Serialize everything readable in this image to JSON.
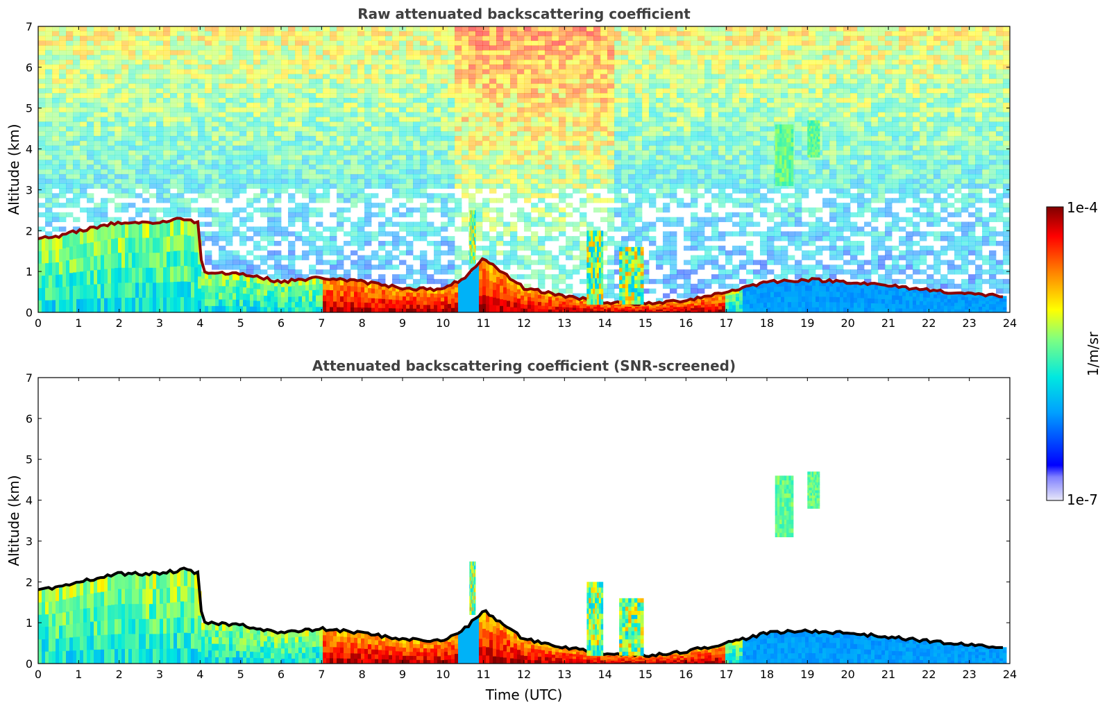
{
  "chart_data": [
    {
      "type": "heatmap",
      "title": "Raw attenuated backscattering coefficient",
      "xlabel": "",
      "ylabel": "Altitude (km)",
      "xlim": [
        0,
        24
      ],
      "ylim": [
        0,
        7
      ],
      "x_ticks": [
        "0",
        "1",
        "2",
        "3",
        "4",
        "5",
        "6",
        "7",
        "8",
        "9",
        "10",
        "11",
        "12",
        "13",
        "14",
        "15",
        "16",
        "17",
        "18",
        "19",
        "20",
        "21",
        "22",
        "23",
        "24"
      ],
      "y_ticks": [
        "0",
        "1",
        "2",
        "3",
        "4",
        "5",
        "6",
        "7"
      ],
      "noise": true,
      "layer_top": [
        [
          0,
          1.8
        ],
        [
          0.5,
          1.85
        ],
        [
          1,
          2.0
        ],
        [
          2,
          2.2
        ],
        [
          3,
          2.2
        ],
        [
          3.6,
          2.3
        ],
        [
          3.95,
          2.2
        ],
        [
          4.05,
          1.0
        ],
        [
          5,
          0.95
        ],
        [
          6,
          0.75
        ],
        [
          7,
          0.85
        ],
        [
          8,
          0.75
        ],
        [
          9,
          0.6
        ],
        [
          10,
          0.55
        ],
        [
          10.6,
          0.9
        ],
        [
          11,
          1.3
        ],
        [
          12,
          0.6
        ],
        [
          13,
          0.4
        ],
        [
          14,
          0.25
        ],
        [
          15,
          0.2
        ],
        [
          16,
          0.3
        ],
        [
          17,
          0.5
        ],
        [
          18,
          0.75
        ],
        [
          19,
          0.8
        ],
        [
          20,
          0.75
        ],
        [
          21,
          0.65
        ],
        [
          22,
          0.55
        ],
        [
          23,
          0.45
        ],
        [
          23.9,
          0.4
        ]
      ],
      "features": [
        {
          "type": "cloud",
          "x0": 18.2,
          "x1": 18.65,
          "y0": 3.1,
          "y1": 4.6
        },
        {
          "type": "cloud",
          "x0": 19.0,
          "x1": 19.3,
          "y0": 3.8,
          "y1": 4.7
        },
        {
          "type": "plume",
          "x0": 10.65,
          "x1": 10.8,
          "y0": 1.2,
          "y1": 2.5
        },
        {
          "type": "plume",
          "x0": 13.55,
          "x1": 13.95,
          "y0": 0.2,
          "y1": 2.0
        },
        {
          "type": "plume",
          "x0": 14.35,
          "x1": 14.95,
          "y0": 0.2,
          "y1": 1.6
        }
      ]
    },
    {
      "type": "heatmap",
      "title": "Attenuated backscattering coefficient (SNR-screened)",
      "xlabel": "Time (UTC)",
      "ylabel": "Altitude (km)",
      "xlim": [
        0,
        24
      ],
      "ylim": [
        0,
        7
      ],
      "x_ticks": [
        "0",
        "1",
        "2",
        "3",
        "4",
        "5",
        "6",
        "7",
        "8",
        "9",
        "10",
        "11",
        "12",
        "13",
        "14",
        "15",
        "16",
        "17",
        "18",
        "19",
        "20",
        "21",
        "22",
        "23",
        "24"
      ],
      "y_ticks": [
        "0",
        "1",
        "2",
        "3",
        "4",
        "5",
        "6",
        "7"
      ],
      "noise": false,
      "layer_top": [
        [
          0,
          1.8
        ],
        [
          0.5,
          1.85
        ],
        [
          1,
          2.0
        ],
        [
          2,
          2.2
        ],
        [
          3,
          2.2
        ],
        [
          3.6,
          2.3
        ],
        [
          3.95,
          2.2
        ],
        [
          4.05,
          1.0
        ],
        [
          5,
          0.95
        ],
        [
          6,
          0.75
        ],
        [
          7,
          0.85
        ],
        [
          8,
          0.75
        ],
        [
          9,
          0.6
        ],
        [
          10,
          0.55
        ],
        [
          10.6,
          0.9
        ],
        [
          11,
          1.3
        ],
        [
          12,
          0.6
        ],
        [
          13,
          0.4
        ],
        [
          14,
          0.25
        ],
        [
          15,
          0.2
        ],
        [
          16,
          0.3
        ],
        [
          17,
          0.5
        ],
        [
          18,
          0.75
        ],
        [
          19,
          0.8
        ],
        [
          20,
          0.75
        ],
        [
          21,
          0.65
        ],
        [
          22,
          0.55
        ],
        [
          23,
          0.45
        ],
        [
          23.9,
          0.4
        ]
      ],
      "features": [
        {
          "type": "cloud",
          "x0": 18.2,
          "x1": 18.65,
          "y0": 3.1,
          "y1": 4.6
        },
        {
          "type": "cloud",
          "x0": 19.0,
          "x1": 19.3,
          "y0": 3.8,
          "y1": 4.7
        },
        {
          "type": "plume",
          "x0": 10.65,
          "x1": 10.8,
          "y0": 1.2,
          "y1": 2.5
        },
        {
          "type": "plume",
          "x0": 13.55,
          "x1": 13.95,
          "y0": 0.2,
          "y1": 2.0
        },
        {
          "type": "plume",
          "x0": 14.35,
          "x1": 14.95,
          "y0": 0.2,
          "y1": 1.6
        }
      ]
    }
  ],
  "colorbar": {
    "max_label": "1e-4",
    "min_label": "1e-7",
    "unit_label": "1/m/sr",
    "colormap": "jet",
    "stops": [
      "#e8e8f8",
      "#0000ff",
      "#00a0ff",
      "#00e8e0",
      "#80ff80",
      "#ffff00",
      "#ff8000",
      "#ff0000",
      "#800000"
    ]
  }
}
